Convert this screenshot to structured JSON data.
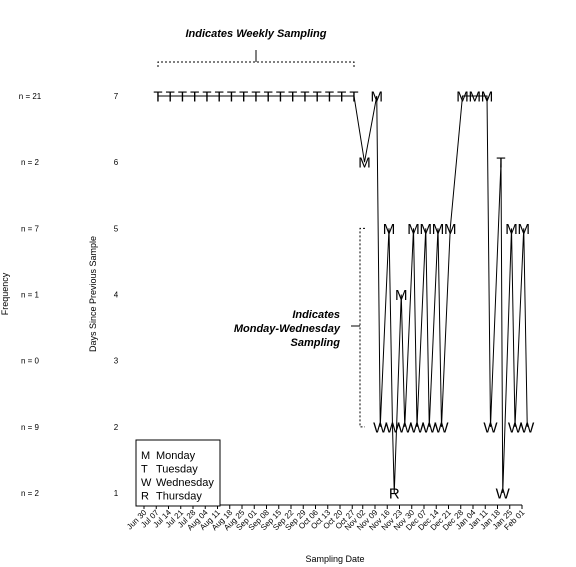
{
  "chart_data": {
    "type": "line",
    "xlabel": "Sampling Date",
    "ylabel": "Days Since Previous Sample",
    "frequency_axis_label": "Frequency",
    "yticks": [
      1,
      2,
      3,
      4,
      5,
      6,
      7
    ],
    "ylim": [
      1,
      7
    ],
    "frequency_by_y": [
      {
        "y": 7,
        "label": "n = 21"
      },
      {
        "y": 6,
        "label": "n = 2"
      },
      {
        "y": 5,
        "label": "n = 7"
      },
      {
        "y": 4,
        "label": "n = 1"
      },
      {
        "y": 3,
        "label": "n = 0"
      },
      {
        "y": 2,
        "label": "n = 9"
      },
      {
        "y": 1,
        "label": "n = 2"
      }
    ],
    "x_tick_labels": [
      "Jun 30",
      "Jul 07",
      "Jul 14",
      "Jul 21",
      "Jul 28",
      "Aug 04",
      "Aug 11",
      "Aug 18",
      "Aug 25",
      "Sep 01",
      "Sep 08",
      "Sep 15",
      "Sep 22",
      "Sep 29",
      "Oct 06",
      "Oct 13",
      "Oct 20",
      "Oct 27",
      "Nov 02",
      "Nov 09",
      "Nov 16",
      "Nov 23",
      "Nov 30",
      "Dec 07",
      "Dec 14",
      "Dec 21",
      "Dec 28",
      "Jan 04",
      "Jan 11",
      "Jan 18",
      "Jan 25",
      "Feb 01"
    ],
    "x_tick_dates": [
      "2003-06-30",
      "2003-07-07",
      "2003-07-14",
      "2003-07-21",
      "2003-07-28",
      "2003-08-04",
      "2003-08-11",
      "2003-08-18",
      "2003-08-25",
      "2003-09-01",
      "2003-09-08",
      "2003-09-15",
      "2003-09-22",
      "2003-09-29",
      "2003-10-06",
      "2003-10-13",
      "2003-10-20",
      "2003-10-27",
      "2003-11-02",
      "2003-11-09",
      "2003-11-16",
      "2003-11-23",
      "2003-11-30",
      "2003-12-07",
      "2003-12-14",
      "2003-12-21",
      "2003-12-28",
      "2004-01-04",
      "2004-01-11",
      "2004-01-18",
      "2004-01-25",
      "2004-02-01"
    ],
    "points": [
      {
        "date": "2003-07-08",
        "y": 7,
        "label": "T"
      },
      {
        "date": "2003-07-15",
        "y": 7,
        "label": "T"
      },
      {
        "date": "2003-07-22",
        "y": 7,
        "label": "T"
      },
      {
        "date": "2003-07-29",
        "y": 7,
        "label": "T"
      },
      {
        "date": "2003-08-05",
        "y": 7,
        "label": "T"
      },
      {
        "date": "2003-08-12",
        "y": 7,
        "label": "T"
      },
      {
        "date": "2003-08-19",
        "y": 7,
        "label": "T"
      },
      {
        "date": "2003-08-26",
        "y": 7,
        "label": "T"
      },
      {
        "date": "2003-09-02",
        "y": 7,
        "label": "T"
      },
      {
        "date": "2003-09-09",
        "y": 7,
        "label": "T"
      },
      {
        "date": "2003-09-16",
        "y": 7,
        "label": "T"
      },
      {
        "date": "2003-09-23",
        "y": 7,
        "label": "T"
      },
      {
        "date": "2003-09-30",
        "y": 7,
        "label": "T"
      },
      {
        "date": "2003-10-07",
        "y": 7,
        "label": "T"
      },
      {
        "date": "2003-10-14",
        "y": 7,
        "label": "T"
      },
      {
        "date": "2003-10-21",
        "y": 7,
        "label": "T"
      },
      {
        "date": "2003-10-28",
        "y": 7,
        "label": "T"
      },
      {
        "date": "2003-11-03",
        "y": 6,
        "label": "M"
      },
      {
        "date": "2003-11-10",
        "y": 7,
        "label": "M"
      },
      {
        "date": "2003-11-12",
        "y": 2,
        "label": "W"
      },
      {
        "date": "2003-11-17",
        "y": 5,
        "label": "M"
      },
      {
        "date": "2003-11-19",
        "y": 2,
        "label": "W"
      },
      {
        "date": "2003-11-20",
        "y": 1,
        "label": "R"
      },
      {
        "date": "2003-11-24",
        "y": 4,
        "label": "M"
      },
      {
        "date": "2003-11-26",
        "y": 2,
        "label": "W"
      },
      {
        "date": "2003-12-01",
        "y": 5,
        "label": "M"
      },
      {
        "date": "2003-12-03",
        "y": 2,
        "label": "W"
      },
      {
        "date": "2003-12-08",
        "y": 5,
        "label": "M"
      },
      {
        "date": "2003-12-10",
        "y": 2,
        "label": "W"
      },
      {
        "date": "2003-12-15",
        "y": 5,
        "label": "M"
      },
      {
        "date": "2003-12-17",
        "y": 2,
        "label": "W"
      },
      {
        "date": "2003-12-22",
        "y": 5,
        "label": "M"
      },
      {
        "date": "2003-12-29",
        "y": 7,
        "label": "M"
      },
      {
        "date": "2004-01-05",
        "y": 7,
        "label": "M"
      },
      {
        "date": "2004-01-12",
        "y": 7,
        "label": "M"
      },
      {
        "date": "2004-01-14",
        "y": 2,
        "label": "W"
      },
      {
        "date": "2004-01-20",
        "y": 6,
        "label": "T"
      },
      {
        "date": "2004-01-21",
        "y": 1,
        "label": "W"
      },
      {
        "date": "2004-01-26",
        "y": 5,
        "label": "M"
      },
      {
        "date": "2004-01-28",
        "y": 2,
        "label": "W"
      },
      {
        "date": "2004-02-02",
        "y": 5,
        "label": "M"
      },
      {
        "date": "2004-02-04",
        "y": 2,
        "label": "W"
      }
    ],
    "annotations": {
      "weekly": "Indicates Weekly Sampling",
      "monday_wednesday": [
        "Indicates",
        "Monday-Wednesday",
        "Sampling"
      ]
    },
    "legend": {
      "placement": "bottom-left",
      "entries": [
        {
          "code": "M",
          "name": "Monday"
        },
        {
          "code": "T",
          "name": "Tuesday"
        },
        {
          "code": "W",
          "name": "Wednesday"
        },
        {
          "code": "R",
          "name": "Thursday"
        }
      ]
    },
    "grid": false
  }
}
